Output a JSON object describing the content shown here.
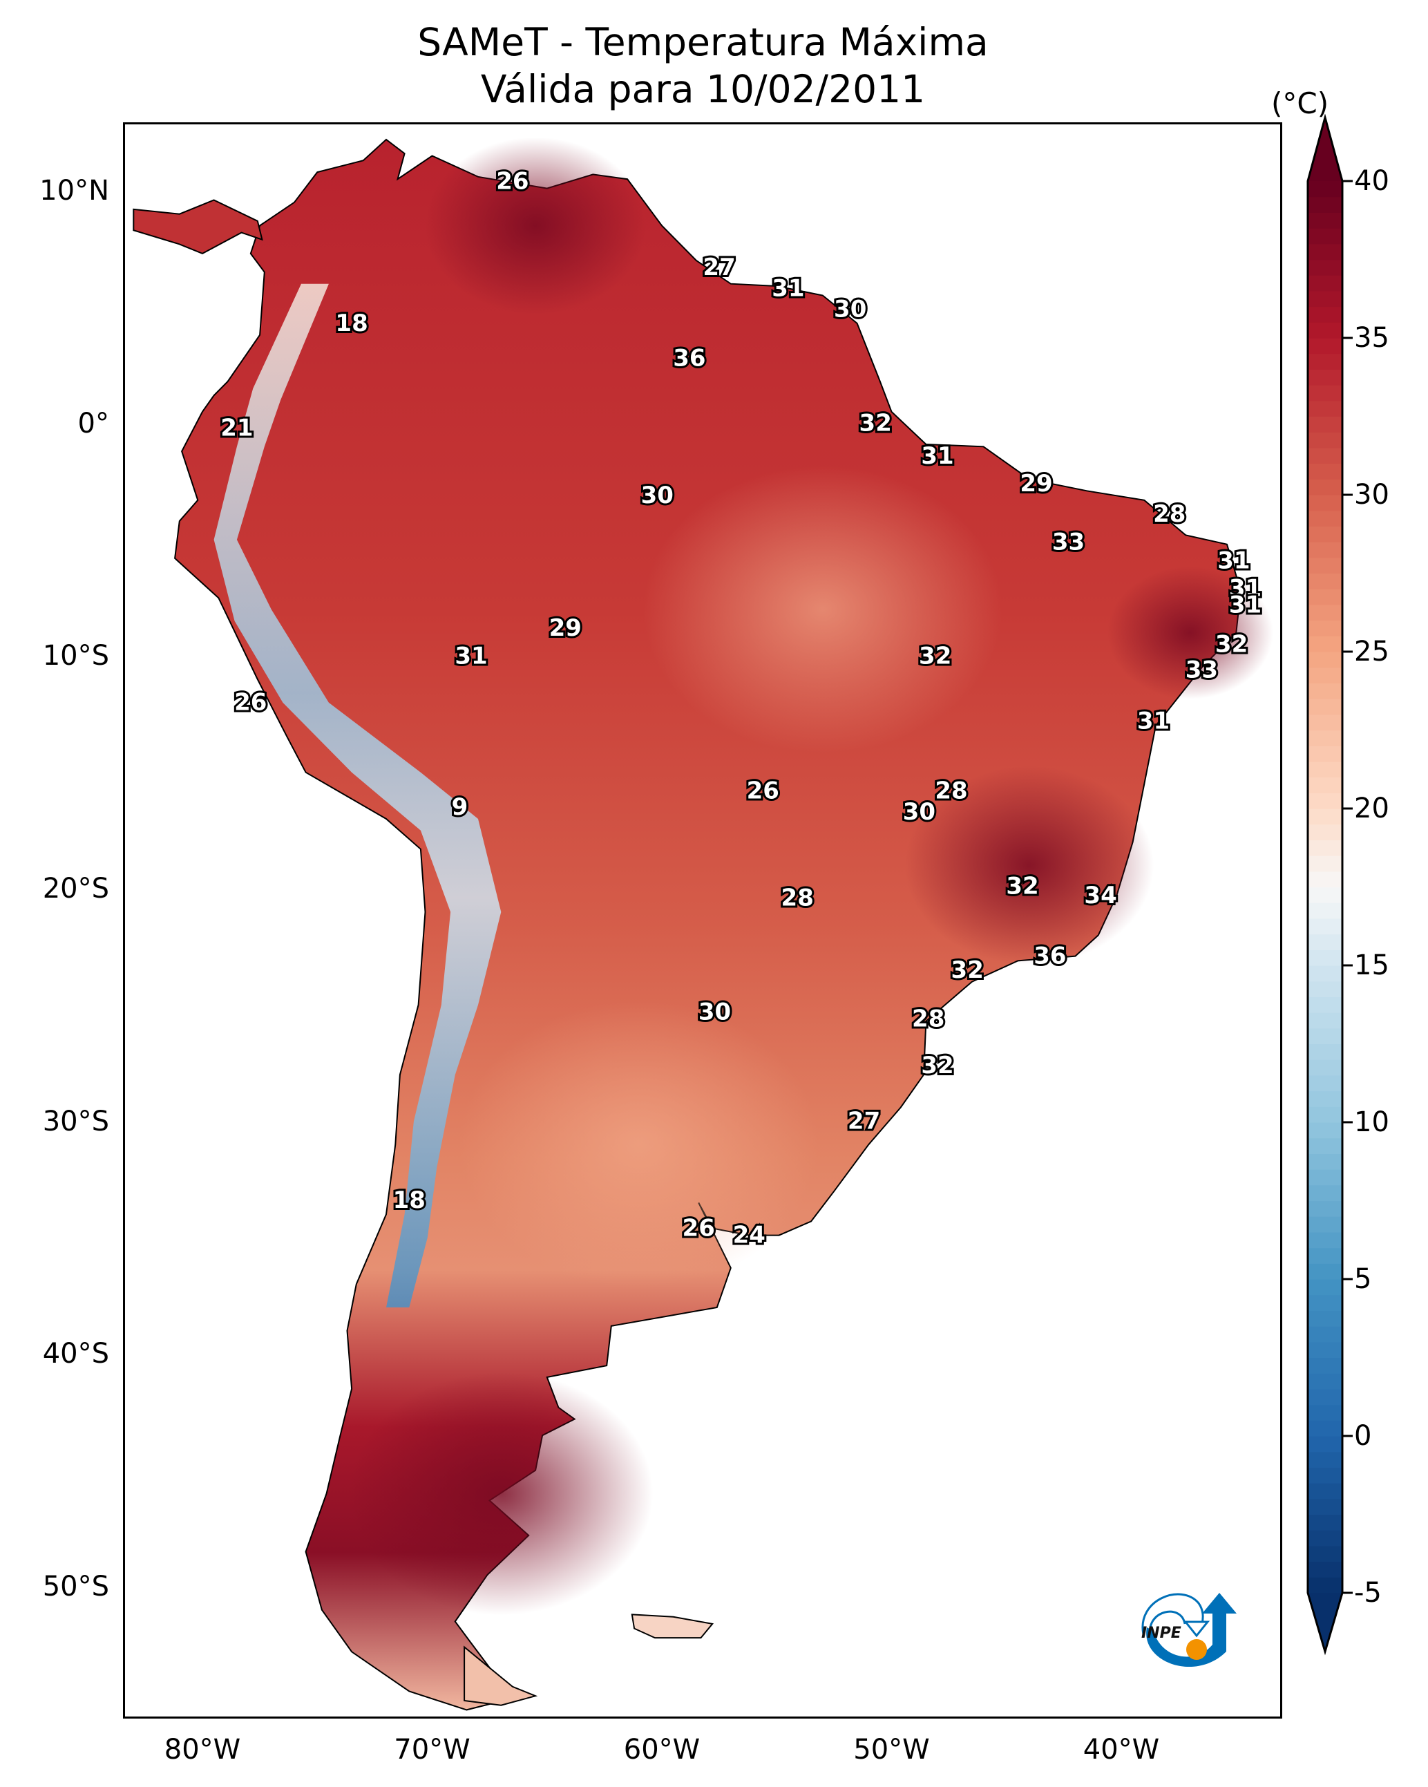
{
  "title": {
    "line1": "SAMeT - Temperatura Máxima",
    "line2": "Válida para 10/02/2011"
  },
  "colorbar": {
    "unit": "(°C)",
    "min": -5,
    "max": 40,
    "extend": "both",
    "colormap": "RdBu_r",
    "ticks": [
      {
        "value": 40,
        "label": "40"
      },
      {
        "value": 35,
        "label": "35"
      },
      {
        "value": 30,
        "label": "30"
      },
      {
        "value": 25,
        "label": "25"
      },
      {
        "value": 20,
        "label": "20"
      },
      {
        "value": 15,
        "label": "15"
      },
      {
        "value": 10,
        "label": "10"
      },
      {
        "value": 5,
        "label": "5"
      },
      {
        "value": 0,
        "label": "0"
      },
      {
        "value": -5,
        "label": "-5"
      }
    ],
    "stops": [
      {
        "value": -5,
        "color": "#08306b"
      },
      {
        "value": 0,
        "color": "#2166ac"
      },
      {
        "value": 5,
        "color": "#4393c3"
      },
      {
        "value": 10,
        "color": "#92c5de"
      },
      {
        "value": 15,
        "color": "#d1e5f0"
      },
      {
        "value": 17.5,
        "color": "#f7f7f7"
      },
      {
        "value": 20,
        "color": "#fddbc7"
      },
      {
        "value": 25,
        "color": "#f4a582"
      },
      {
        "value": 30,
        "color": "#d6604d"
      },
      {
        "value": 35,
        "color": "#b2182b"
      },
      {
        "value": 40,
        "color": "#67001f"
      }
    ]
  },
  "axes": {
    "lat_labels": [
      {
        "lat": 10,
        "label": "10°N"
      },
      {
        "lat": 0,
        "label": "0°"
      },
      {
        "lat": -10,
        "label": "10°S"
      },
      {
        "lat": -20,
        "label": "20°S"
      },
      {
        "lat": -30,
        "label": "30°S"
      },
      {
        "lat": -40,
        "label": "40°S"
      },
      {
        "lat": -50,
        "label": "50°S"
      }
    ],
    "lon_labels": [
      {
        "lon": -80,
        "label": "80°W"
      },
      {
        "lon": -70,
        "label": "70°W"
      },
      {
        "lon": -60,
        "label": "60°W"
      },
      {
        "lon": -50,
        "label": "50°W"
      },
      {
        "lon": -40,
        "label": "40°W"
      }
    ],
    "lon_range": [
      -83,
      -32
    ],
    "lat_range": [
      -56,
      13
    ]
  },
  "chart_data": {
    "type": "heatmap",
    "title": "SAMeT - Temperatura Máxima Válida para 10/02/2011",
    "variable": "Temperatura Máxima",
    "unit": "°C",
    "date": "10/02/2011",
    "colorbar_range": [
      -5,
      40
    ],
    "xlabel": "",
    "ylabel": "",
    "x_ticks": [
      "80°W",
      "70°W",
      "60°W",
      "50°W",
      "40°W"
    ],
    "y_ticks": [
      "10°N",
      "0°",
      "10°S",
      "20°S",
      "30°S",
      "40°S",
      "50°S"
    ],
    "annotations": [
      {
        "lon": -66.5,
        "lat": 10.4,
        "value": 26
      },
      {
        "lon": -73.5,
        "lat": 4.3,
        "value": 18
      },
      {
        "lon": -57.5,
        "lat": 6.7,
        "value": 27
      },
      {
        "lon": -54.5,
        "lat": 5.8,
        "value": 31
      },
      {
        "lon": -51.8,
        "lat": 4.9,
        "value": 30
      },
      {
        "lon": -58.8,
        "lat": 2.8,
        "value": 36
      },
      {
        "lon": -78.5,
        "lat": -0.2,
        "value": 21
      },
      {
        "lon": -50.7,
        "lat": 0.0,
        "value": 32
      },
      {
        "lon": -48.0,
        "lat": -1.4,
        "value": 31
      },
      {
        "lon": -43.7,
        "lat": -2.6,
        "value": 29
      },
      {
        "lon": -60.2,
        "lat": -3.1,
        "value": 30
      },
      {
        "lon": -37.9,
        "lat": -3.9,
        "value": 28
      },
      {
        "lon": -42.3,
        "lat": -5.1,
        "value": 33
      },
      {
        "lon": -35.1,
        "lat": -5.9,
        "value": 31
      },
      {
        "lon": -34.6,
        "lat": -7.1,
        "value": 31
      },
      {
        "lon": -34.6,
        "lat": -7.8,
        "value": 31
      },
      {
        "lon": -64.2,
        "lat": -8.8,
        "value": 29
      },
      {
        "lon": -68.3,
        "lat": -10.0,
        "value": 31
      },
      {
        "lon": -48.1,
        "lat": -10.0,
        "value": 32
      },
      {
        "lon": -35.2,
        "lat": -9.5,
        "value": 32
      },
      {
        "lon": -36.5,
        "lat": -10.6,
        "value": 33
      },
      {
        "lon": -77.9,
        "lat": -12.0,
        "value": 26
      },
      {
        "lon": -38.6,
        "lat": -12.8,
        "value": 31
      },
      {
        "lon": -55.6,
        "lat": -15.8,
        "value": 26
      },
      {
        "lon": -47.4,
        "lat": -15.8,
        "value": 28
      },
      {
        "lon": -48.8,
        "lat": -16.7,
        "value": 30
      },
      {
        "lon": -68.8,
        "lat": -16.5,
        "value": 9
      },
      {
        "lon": -44.3,
        "lat": -19.9,
        "value": 32
      },
      {
        "lon": -40.9,
        "lat": -20.3,
        "value": 34
      },
      {
        "lon": -54.1,
        "lat": -20.4,
        "value": 28
      },
      {
        "lon": -43.1,
        "lat": -22.9,
        "value": 36
      },
      {
        "lon": -46.7,
        "lat": -23.5,
        "value": 32
      },
      {
        "lon": -57.7,
        "lat": -25.3,
        "value": 30
      },
      {
        "lon": -48.4,
        "lat": -25.6,
        "value": 28
      },
      {
        "lon": -48.0,
        "lat": -27.6,
        "value": 32
      },
      {
        "lon": -51.2,
        "lat": -30.0,
        "value": 27
      },
      {
        "lon": -71.0,
        "lat": -33.4,
        "value": 18
      },
      {
        "lon": -58.4,
        "lat": -34.6,
        "value": 26
      },
      {
        "lon": -56.2,
        "lat": -34.9,
        "value": 24
      }
    ]
  },
  "logo": {
    "text": "INPE",
    "colors": {
      "blue": "#0070b8",
      "orange": "#f39200",
      "text": "#111111"
    }
  }
}
